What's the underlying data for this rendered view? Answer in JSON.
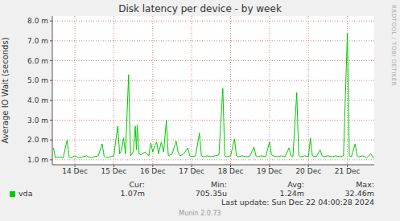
{
  "chart_data": {
    "type": "line",
    "title": "Disk latency per device - by week",
    "ylabel": "Average IO Wait (seconds)",
    "watermark": "RRDTOOL / TOBI OETIKER",
    "footer": "Last update: Sun Dec 22 04:00:28 2024",
    "credit": "Munin 2.0.73",
    "grid": true,
    "legend": "bottom",
    "stat_labels": [
      "Cur:",
      "Min:",
      "Avg:",
      "Max:"
    ],
    "x": [
      13.95,
      14.0,
      14.1,
      14.2,
      14.3,
      14.35,
      14.4,
      14.5,
      14.6,
      14.7,
      14.8,
      14.9,
      15.0,
      15.1,
      15.2,
      15.25,
      15.3,
      15.4,
      15.5,
      15.6,
      15.65,
      15.7,
      15.75,
      15.8,
      15.88,
      15.93,
      16.0,
      16.05,
      16.08,
      16.1,
      16.15,
      16.2,
      16.3,
      16.4,
      16.45,
      16.5,
      16.55,
      16.6,
      16.65,
      16.72,
      16.78,
      16.85,
      16.9,
      17.0,
      17.1,
      17.15,
      17.2,
      17.3,
      17.4,
      17.45,
      17.5,
      17.6,
      17.7,
      17.75,
      17.8,
      17.9,
      18.0,
      18.1,
      18.2,
      18.3,
      18.35,
      18.4,
      18.5,
      18.6,
      18.65,
      18.7,
      18.8,
      18.9,
      19.0,
      19.1,
      19.15,
      19.2,
      19.3,
      19.4,
      19.5,
      19.55,
      19.6,
      19.7,
      19.8,
      19.9,
      20.0,
      20.05,
      20.1,
      20.2,
      20.25,
      20.3,
      20.4,
      20.5,
      20.55,
      20.6,
      20.7,
      20.8,
      20.85,
      20.9,
      21.0,
      21.1,
      21.2,
      21.3,
      21.4,
      21.5,
      21.55,
      21.6,
      21.7,
      21.75,
      21.8,
      21.9,
      22.0,
      22.1,
      22.18
    ],
    "series": [
      {
        "name": "vda",
        "color": "#00cc00",
        "stats": [
          "1.07m",
          "705.35u",
          "1.24m",
          "32.46m"
        ],
        "values": [
          0.0016,
          0.0011,
          0.00115,
          0.0011,
          0.002,
          0.00115,
          0.0011,
          0.0012,
          0.0011,
          0.00115,
          0.0012,
          0.0011,
          0.00115,
          0.0012,
          0.0018,
          0.0012,
          0.0011,
          0.00115,
          0.0012,
          0.0027,
          0.0013,
          0.0015,
          0.0021,
          0.0013,
          0.0053,
          0.0012,
          0.0014,
          0.0027,
          0.0015,
          0.00275,
          0.0013,
          0.00125,
          0.0014,
          0.0012,
          0.00185,
          0.0014,
          0.0017,
          0.0019,
          0.0013,
          0.0019,
          0.0014,
          0.003,
          0.0012,
          0.0013,
          0.00195,
          0.0014,
          0.0012,
          0.0013,
          0.0016,
          0.0012,
          0.00115,
          0.0012,
          0.00235,
          0.0012,
          0.00115,
          0.0012,
          0.00115,
          0.0012,
          0.00125,
          0.0046,
          0.0012,
          0.00115,
          0.0012,
          0.00205,
          0.0012,
          0.00115,
          0.0012,
          0.00115,
          0.0012,
          0.00165,
          0.0012,
          0.00115,
          0.0012,
          0.00115,
          0.0019,
          0.00125,
          0.0012,
          0.00115,
          0.0012,
          0.00115,
          0.0016,
          0.0012,
          0.00115,
          0.0044,
          0.0012,
          0.00115,
          0.0012,
          0.00115,
          0.0021,
          0.0012,
          0.00115,
          0.0015,
          0.0012,
          0.00115,
          0.0012,
          0.00115,
          0.0012,
          0.00115,
          0.0012,
          0.0074,
          0.0012,
          0.00115,
          0.0018,
          0.0012,
          0.00115,
          0.0012,
          0.0011,
          0.0013,
          0.00107
        ]
      }
    ],
    "xlim": [
      13.92,
      22.19
    ],
    "xticks": [
      {
        "value": 14.5,
        "label": "14 Dec"
      },
      {
        "value": 15.5,
        "label": "15 Dec"
      },
      {
        "value": 16.5,
        "label": "16 Dec"
      },
      {
        "value": 17.5,
        "label": "17 Dec"
      },
      {
        "value": 18.5,
        "label": "18 Dec"
      },
      {
        "value": 19.5,
        "label": "19 Dec"
      },
      {
        "value": 20.5,
        "label": "20 Dec"
      },
      {
        "value": 21.5,
        "label": "21 Dec"
      }
    ],
    "ylim": [
      0.00075,
      0.00825
    ],
    "yticks": [
      {
        "value": 0.001,
        "label": "1.0 m"
      },
      {
        "value": 0.002,
        "label": "2.0 m"
      },
      {
        "value": 0.003,
        "label": "3.0 m"
      },
      {
        "value": 0.004,
        "label": "4.0 m"
      },
      {
        "value": 0.005,
        "label": "5.0 m"
      },
      {
        "value": 0.006,
        "label": "6.0 m"
      },
      {
        "value": 0.007,
        "label": "7.0 m"
      },
      {
        "value": 0.008,
        "label": "8.0 m"
      }
    ]
  }
}
